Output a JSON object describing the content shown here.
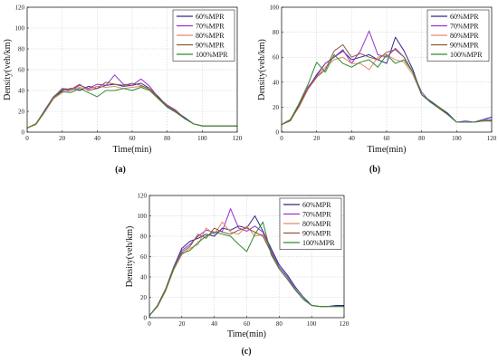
{
  "figure": {
    "series_styles": [
      {
        "name": "60%MPR",
        "color": "#2b2b8c"
      },
      {
        "name": "70%MPR",
        "color": "#9b30c8"
      },
      {
        "name": "80%MPR",
        "color": "#e8866a"
      },
      {
        "name": "90%MPR",
        "color": "#8b5a3c"
      },
      {
        "name": "100%MPR",
        "color": "#2e8b2e"
      }
    ]
  },
  "chart_data": [
    {
      "type": "line",
      "caption": "(a)",
      "xlabel": "Time(min)",
      "ylabel": "Density(veh/km)",
      "xlim": [
        0,
        120
      ],
      "ylim": [
        0,
        120
      ],
      "xticks": [
        0,
        20,
        40,
        60,
        80,
        100,
        120
      ],
      "yticks": [
        0,
        20,
        40,
        60,
        80,
        100,
        120
      ],
      "grid": true,
      "legend_position": "top-right",
      "x": [
        0,
        5,
        10,
        15,
        20,
        25,
        30,
        35,
        40,
        45,
        50,
        55,
        60,
        65,
        70,
        75,
        80,
        85,
        90,
        95,
        100,
        105,
        110,
        115,
        120
      ],
      "series": [
        {
          "name": "60%MPR",
          "values": [
            4,
            8,
            20,
            33,
            40,
            42,
            40,
            44,
            42,
            45,
            46,
            44,
            45,
            47,
            42,
            34,
            25,
            20,
            14,
            8,
            6,
            6,
            6,
            6,
            6
          ]
        },
        {
          "name": "70%MPR",
          "values": [
            4,
            8,
            21,
            34,
            41,
            40,
            45,
            42,
            46,
            45,
            55,
            46,
            45,
            51,
            44,
            33,
            26,
            21,
            13,
            8,
            6,
            6,
            6,
            6,
            6
          ]
        },
        {
          "name": "80%MPR",
          "values": [
            4,
            7,
            19,
            32,
            38,
            40,
            43,
            41,
            44,
            43,
            44,
            42,
            43,
            44,
            42,
            32,
            24,
            19,
            13,
            8,
            6,
            6,
            6,
            6,
            6
          ]
        },
        {
          "name": "90%MPR",
          "values": [
            4,
            8,
            20,
            33,
            42,
            41,
            46,
            40,
            42,
            48,
            46,
            45,
            47,
            45,
            41,
            33,
            25,
            20,
            13,
            8,
            6,
            6,
            6,
            6,
            6
          ]
        },
        {
          "name": "100%MPR",
          "values": [
            4,
            8,
            20,
            33,
            39,
            38,
            42,
            38,
            34,
            40,
            40,
            42,
            40,
            43,
            40,
            32,
            24,
            19,
            13,
            8,
            6,
            6,
            6,
            6,
            6
          ]
        }
      ]
    },
    {
      "type": "line",
      "caption": "(b)",
      "xlabel": "Time(min)",
      "ylabel": "Density(veh/km)",
      "xlim": [
        0,
        120
      ],
      "ylim": [
        0,
        100
      ],
      "xticks": [
        0,
        20,
        40,
        60,
        80,
        100,
        120
      ],
      "yticks": [
        0,
        20,
        40,
        60,
        80,
        100
      ],
      "grid": true,
      "legend_position": "top-right",
      "x": [
        0,
        5,
        10,
        15,
        20,
        25,
        30,
        35,
        40,
        45,
        50,
        55,
        60,
        65,
        70,
        75,
        80,
        85,
        90,
        95,
        100,
        105,
        110,
        115,
        120
      ],
      "series": [
        {
          "name": "60%MPR",
          "values": [
            6,
            10,
            22,
            35,
            46,
            55,
            60,
            65,
            58,
            60,
            62,
            58,
            55,
            76,
            65,
            50,
            30,
            25,
            20,
            15,
            8,
            8,
            8,
            10,
            12
          ]
        },
        {
          "name": "70%MPR",
          "values": [
            6,
            10,
            22,
            36,
            45,
            55,
            60,
            66,
            55,
            65,
            81,
            62,
            60,
            67,
            60,
            48,
            32,
            24,
            20,
            14,
            8,
            9,
            8,
            10,
            10
          ]
        },
        {
          "name": "80%MPR",
          "values": [
            6,
            10,
            20,
            34,
            44,
            52,
            58,
            60,
            55,
            55,
            50,
            60,
            62,
            58,
            56,
            46,
            30,
            24,
            19,
            14,
            8,
            8,
            8,
            9,
            9
          ]
        },
        {
          "name": "90%MPR",
          "values": [
            6,
            9,
            21,
            35,
            44,
            50,
            65,
            70,
            60,
            63,
            60,
            58,
            64,
            66,
            60,
            48,
            30,
            24,
            19,
            14,
            8,
            8,
            8,
            9,
            9
          ]
        },
        {
          "name": "100%MPR",
          "values": [
            6,
            10,
            23,
            38,
            56,
            48,
            62,
            55,
            52,
            56,
            58,
            52,
            62,
            55,
            58,
            48,
            30,
            24,
            20,
            14,
            8,
            8,
            8,
            9,
            9
          ]
        }
      ]
    },
    {
      "type": "line",
      "caption": "(c)",
      "xlabel": "Time(min)",
      "ylabel": "Density(veh/km)",
      "xlim": [
        0,
        120
      ],
      "ylim": [
        0,
        120
      ],
      "xticks": [
        0,
        20,
        40,
        60,
        80,
        100,
        120
      ],
      "yticks": [
        0,
        20,
        40,
        60,
        80,
        100,
        120
      ],
      "grid": true,
      "legend_position": "top-right",
      "x": [
        0,
        5,
        10,
        15,
        20,
        25,
        30,
        35,
        40,
        45,
        50,
        55,
        60,
        65,
        70,
        75,
        80,
        85,
        90,
        95,
        100,
        105,
        110,
        115,
        120
      ],
      "series": [
        {
          "name": "60%MPR",
          "values": [
            2,
            12,
            28,
            50,
            68,
            75,
            78,
            82,
            80,
            88,
            86,
            90,
            88,
            100,
            85,
            68,
            52,
            42,
            30,
            20,
            12,
            11,
            11,
            12,
            12
          ]
        },
        {
          "name": "70%MPR",
          "values": [
            2,
            12,
            28,
            50,
            66,
            72,
            80,
            86,
            84,
            85,
            107,
            88,
            85,
            90,
            84,
            66,
            50,
            40,
            28,
            18,
            12,
            11,
            11,
            11,
            11
          ]
        },
        {
          "name": "80%MPR",
          "values": [
            2,
            11,
            26,
            47,
            62,
            68,
            72,
            88,
            82,
            94,
            84,
            82,
            90,
            80,
            82,
            64,
            48,
            38,
            27,
            18,
            12,
            11,
            11,
            11,
            11
          ]
        },
        {
          "name": "90%MPR",
          "values": [
            2,
            11,
            27,
            48,
            64,
            70,
            82,
            78,
            88,
            84,
            82,
            86,
            88,
            84,
            80,
            64,
            48,
            38,
            27,
            18,
            12,
            11,
            11,
            11,
            11
          ]
        },
        {
          "name": "100%MPR",
          "values": [
            2,
            12,
            28,
            49,
            63,
            66,
            74,
            80,
            84,
            82,
            80,
            72,
            65,
            82,
            94,
            62,
            48,
            38,
            27,
            18,
            12,
            11,
            11,
            11,
            11
          ]
        }
      ]
    }
  ]
}
